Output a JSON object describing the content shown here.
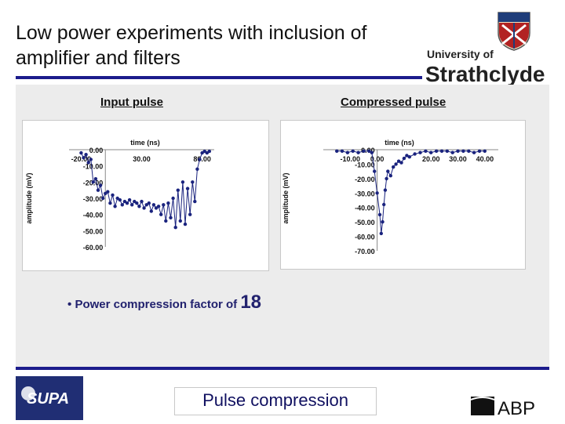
{
  "slide": {
    "title": "Low power experiments with inclusion of amplifier and filters",
    "bullet_text": "Power compression factor of ",
    "bullet_value": "18",
    "bullet_marker": "•",
    "footer_text": "Pulse compression"
  },
  "logos": {
    "university_line1": "University of",
    "university_line2": "Strathclyde",
    "supa": "SUPA",
    "abp": "ABP"
  },
  "colors": {
    "title_rule": "#1c1c8c",
    "marker": "#1a237e",
    "supa_bg": "#202e74"
  },
  "chart_data": [
    {
      "type": "scatter",
      "label": "Input pulse",
      "xlabel": "time (ns)",
      "ylabel": "amplitude (mV)",
      "xlim": [
        -30,
        90
      ],
      "ylim": [
        -60,
        0
      ],
      "x_ticks": [
        "-20.00",
        "30.00",
        "80.00"
      ],
      "y_ticks": [
        "0.00",
        "-10.00",
        "-20.00",
        "-30.00",
        "-40.00",
        "-50.00",
        "-60.00"
      ],
      "x": [
        -20,
        -18,
        -16,
        -14,
        -12,
        -10,
        -8,
        -6,
        -4,
        -2,
        0,
        2,
        4,
        6,
        8,
        10,
        12,
        14,
        16,
        18,
        20,
        22,
        24,
        26,
        28,
        30,
        32,
        34,
        36,
        38,
        40,
        42,
        44,
        46,
        48,
        50,
        52,
        54,
        56,
        58,
        60,
        62,
        64,
        66,
        68,
        70,
        72,
        74,
        76,
        78,
        80,
        82,
        84,
        86
      ],
      "y": [
        -2,
        -5,
        -3,
        -8,
        -6,
        -20,
        -18,
        -25,
        -22,
        -30,
        -27,
        -26,
        -33,
        -28,
        -35,
        -30,
        -31,
        -34,
        -32,
        -33,
        -31,
        -34,
        -32,
        -33,
        -35,
        -32,
        -36,
        -34,
        -33,
        -38,
        -34,
        -36,
        -35,
        -40,
        -34,
        -44,
        -33,
        -42,
        -30,
        -48,
        -25,
        -44,
        -20,
        -46,
        -24,
        -40,
        -20,
        -32,
        -12,
        -6,
        -2,
        -1,
        -2,
        -1
      ]
    },
    {
      "type": "scatter",
      "label": "Compressed pulse",
      "xlabel": "time (ns)",
      "ylabel": "amplitude (mV)",
      "xlim": [
        -20,
        45
      ],
      "ylim": [
        -70,
        0
      ],
      "x_ticks": [
        "-10.00",
        "0.00",
        "20.00",
        "30.00",
        "40.00"
      ],
      "y_ticks": [
        "0.00",
        "-10.00",
        "-20.00",
        "-30.00",
        "-40.00",
        "-50.00",
        "-60.00",
        "-70.00"
      ],
      "x": [
        -15,
        -13,
        -11,
        -9,
        -7,
        -5,
        -3,
        -2,
        -1,
        0,
        1,
        1.5,
        2,
        2.5,
        3,
        3.5,
        4,
        5,
        6,
        7,
        8,
        9,
        10,
        11,
        12,
        14,
        16,
        18,
        20,
        22,
        24,
        26,
        28,
        30,
        32,
        34,
        36,
        38,
        40
      ],
      "y": [
        -1,
        -1,
        -2,
        -1,
        -2,
        -1,
        -1,
        -2,
        -15,
        -30,
        -45,
        -58,
        -50,
        -38,
        -28,
        -20,
        -15,
        -18,
        -12,
        -10,
        -8,
        -9,
        -6,
        -4,
        -5,
        -3,
        -2,
        -1,
        -2,
        -1,
        -1,
        -1,
        -2,
        -1,
        -1,
        -1,
        -2,
        -1,
        -1
      ]
    }
  ]
}
